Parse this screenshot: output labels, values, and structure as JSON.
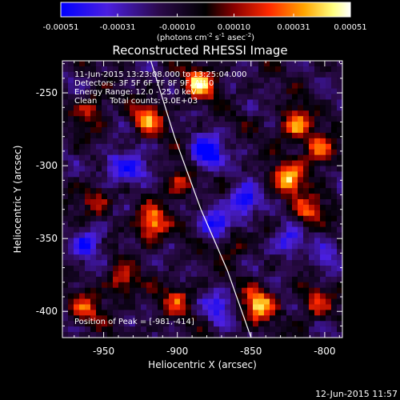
{
  "chart_data": {
    "type": "heatmap",
    "title": "Reconstructed RHESSI Image",
    "xlabel": "Heliocentric X (arcsec)",
    "ylabel": "Heliocentric Y (arcsec)",
    "xlim": [
      -978,
      -788
    ],
    "ylim": [
      -418,
      -228
    ],
    "x_ticks": [
      -950,
      -900,
      -850,
      -800
    ],
    "y_ticks": [
      -400,
      -350,
      -300,
      -250
    ],
    "colorbar": {
      "range": [
        -0.00051,
        0.00051
      ],
      "ticks": [
        "-0.00051",
        "-0.00031",
        "-0.00010",
        "0.00010",
        "0.00031",
        "0.00051"
      ],
      "units_prefix": "(photons cm",
      "units_exp1": "-2",
      "units_mid": " s",
      "units_exp2": "-1",
      "units_mid2": " asec",
      "units_exp3": "-2",
      "units_suffix": ")",
      "colors": [
        "#0000ff",
        "#5a2fd8",
        "#1a0033",
        "#000000",
        "#8b0000",
        "#ff2a00",
        "#ffa500",
        "#ffff80",
        "#ffffff"
      ]
    },
    "annotations": {
      "time": "11-Jun-2015 13:23:08.000 to 13:25:04.000",
      "detectors": "Detectors: 3F 5F 6F 7F 8F 9F, Att 0",
      "energy": "Energy Range: 12.0 - 25.0 keV",
      "clean": "Clean     Total counts: 3.0E+03",
      "peak": "Position of Peak = [-981,-414]"
    },
    "limb": [
      [
        -918,
        -228
      ],
      [
        -902,
        -280
      ],
      [
        -884,
        -330
      ],
      [
        -866,
        -372
      ],
      [
        -850,
        -418
      ]
    ],
    "bright_sources": [
      {
        "x": -885,
        "y": -244,
        "value": 0.00051
      },
      {
        "x": -920,
        "y": -268,
        "value": 0.0004
      },
      {
        "x": -958,
        "y": -262,
        "value": 0.0003
      },
      {
        "x": -820,
        "y": -272,
        "value": 0.00045
      },
      {
        "x": -804,
        "y": -290,
        "value": 0.00042
      },
      {
        "x": -825,
        "y": -310,
        "value": 0.00051
      },
      {
        "x": -812,
        "y": -332,
        "value": 0.00035
      },
      {
        "x": -918,
        "y": -340,
        "value": 0.00051
      },
      {
        "x": -898,
        "y": -312,
        "value": 0.0003
      },
      {
        "x": -955,
        "y": -322,
        "value": 0.00028
      },
      {
        "x": -864,
        "y": -352,
        "value": 0.00028
      },
      {
        "x": -845,
        "y": -395,
        "value": 0.00051
      },
      {
        "x": -938,
        "y": -380,
        "value": 0.00032
      },
      {
        "x": -900,
        "y": -392,
        "value": 0.00028
      },
      {
        "x": -962,
        "y": -398,
        "value": 0.0003
      },
      {
        "x": -806,
        "y": -395,
        "value": 0.0003
      }
    ],
    "negative_regions": [
      {
        "x": -880,
        "y": -292,
        "value": -0.00051
      },
      {
        "x": -855,
        "y": -325,
        "value": -0.00045
      },
      {
        "x": -872,
        "y": -342,
        "value": -0.0004
      },
      {
        "x": -942,
        "y": -300,
        "value": -0.0003
      },
      {
        "x": -960,
        "y": -352,
        "value": -0.00032
      },
      {
        "x": -825,
        "y": -352,
        "value": -0.00034
      },
      {
        "x": -872,
        "y": -397,
        "value": -0.00028
      },
      {
        "x": -928,
        "y": -305,
        "value": -0.00026
      },
      {
        "x": -800,
        "y": -365,
        "value": -0.0002
      }
    ]
  },
  "footer": {
    "timestamp": "12-Jun-2015 11:57"
  }
}
